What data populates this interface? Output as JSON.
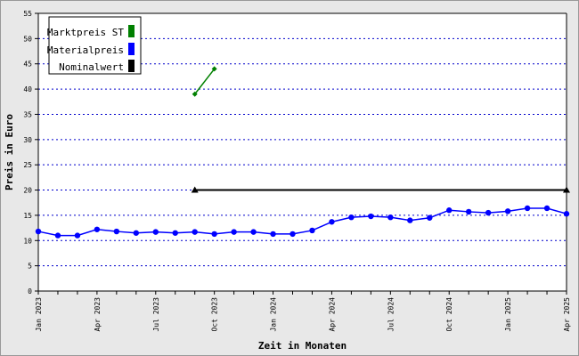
{
  "chart_data": {
    "type": "line",
    "xlabel": "Zeit in Monaten",
    "ylabel": "Preis in Euro",
    "ylim": [
      0,
      55
    ],
    "yticks": [
      0,
      5,
      10,
      15,
      20,
      25,
      30,
      35,
      40,
      45,
      50,
      55
    ],
    "grid": true,
    "legend_position": "top-left",
    "categories": [
      "Jan 2023",
      "Feb 2023",
      "Mar 2023",
      "Apr 2023",
      "May 2023",
      "Jun 2023",
      "Jul 2023",
      "Aug 2023",
      "Sep 2023",
      "Oct 2023",
      "Nov 2023",
      "Dec 2023",
      "Jan 2024",
      "Feb 2024",
      "Mar 2024",
      "Apr 2024",
      "May 2024",
      "Jun 2024",
      "Jul 2024",
      "Aug 2024",
      "Sep 2024",
      "Oct 2024",
      "Nov 2024",
      "Dec 2024",
      "Jan 2025",
      "Feb 2025",
      "Mar 2025",
      "Apr 2025"
    ],
    "tick_labels": [
      {
        "index": 0,
        "label": "Jan 2023"
      },
      {
        "index": 3,
        "label": "Apr 2023"
      },
      {
        "index": 6,
        "label": "Jul 2023"
      },
      {
        "index": 9,
        "label": "Oct 2023"
      },
      {
        "index": 12,
        "label": "Jan 2024"
      },
      {
        "index": 15,
        "label": "Apr 2024"
      },
      {
        "index": 18,
        "label": "Jul 2024"
      },
      {
        "index": 21,
        "label": "Oct 2024"
      },
      {
        "index": 24,
        "label": "Jan 2025"
      },
      {
        "index": 27,
        "label": "Apr 2025"
      }
    ],
    "series": [
      {
        "name": "Marktpreis ST",
        "color": "#008000",
        "marker": "diamond",
        "values": [
          null,
          null,
          null,
          null,
          null,
          null,
          null,
          null,
          39,
          44,
          null,
          null,
          null,
          null,
          null,
          null,
          null,
          null,
          null,
          null,
          null,
          null,
          null,
          null,
          null,
          null,
          null,
          null
        ]
      },
      {
        "name": "Materialpreis",
        "color": "#0000ff",
        "marker": "circle",
        "values": [
          11.8,
          11.0,
          11.0,
          12.2,
          11.8,
          11.5,
          11.7,
          11.5,
          11.7,
          11.3,
          11.7,
          11.7,
          11.3,
          11.3,
          12.0,
          13.7,
          14.6,
          14.8,
          14.6,
          14.0,
          14.5,
          16.0,
          15.7,
          15.5,
          15.8,
          16.4,
          16.4,
          15.3
        ]
      },
      {
        "name": "Nominalwert",
        "color": "#000000",
        "marker": "triangle",
        "values": [
          null,
          null,
          null,
          null,
          null,
          null,
          null,
          null,
          20,
          20,
          20,
          20,
          20,
          20,
          20,
          20,
          20,
          20,
          20,
          20,
          20,
          20,
          20,
          20,
          20,
          20,
          20,
          20
        ],
        "marker_indices": [
          8,
          27
        ]
      }
    ]
  }
}
